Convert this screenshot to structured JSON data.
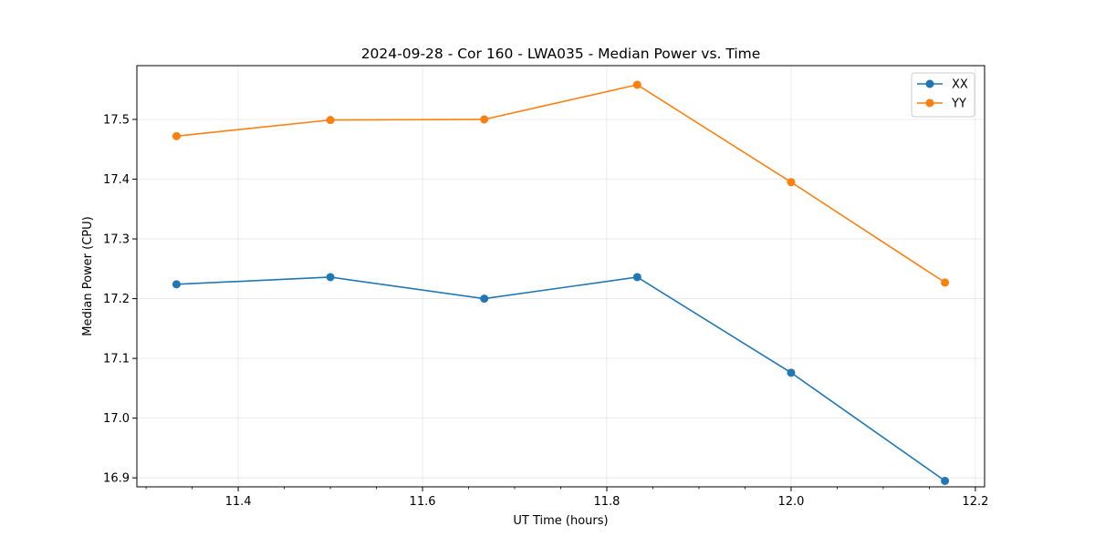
{
  "chart_data": {
    "type": "line",
    "title": "2024-09-28 - Cor 160 - LWA035 - Median Power vs. Time",
    "xlabel": "UT Time (hours)",
    "ylabel": "Median Power (CPU)",
    "xlim": [
      11.29,
      12.21
    ],
    "ylim": [
      16.885,
      17.59
    ],
    "xticks": [
      11.4,
      11.6,
      11.8,
      12.0,
      12.2
    ],
    "xtick_labels": [
      "11.4",
      "11.6",
      "11.8",
      "12.0",
      "12.2"
    ],
    "yticks": [
      16.9,
      17.0,
      17.1,
      17.2,
      17.3,
      17.4,
      17.5
    ],
    "ytick_labels": [
      "16.9",
      "17.0",
      "17.1",
      "17.2",
      "17.3",
      "17.4",
      "17.5"
    ],
    "grid": true,
    "legend_position": "top-right",
    "x": [
      11.333,
      11.5,
      11.667,
      11.833,
      12.0,
      12.167
    ],
    "series": [
      {
        "name": "XX",
        "color": "#1f77b4",
        "values": [
          17.224,
          17.236,
          17.2,
          17.236,
          17.076,
          16.895
        ]
      },
      {
        "name": "YY",
        "color": "#ff7f0e",
        "values": [
          17.472,
          17.499,
          17.5,
          17.558,
          17.395,
          17.227
        ]
      }
    ]
  }
}
